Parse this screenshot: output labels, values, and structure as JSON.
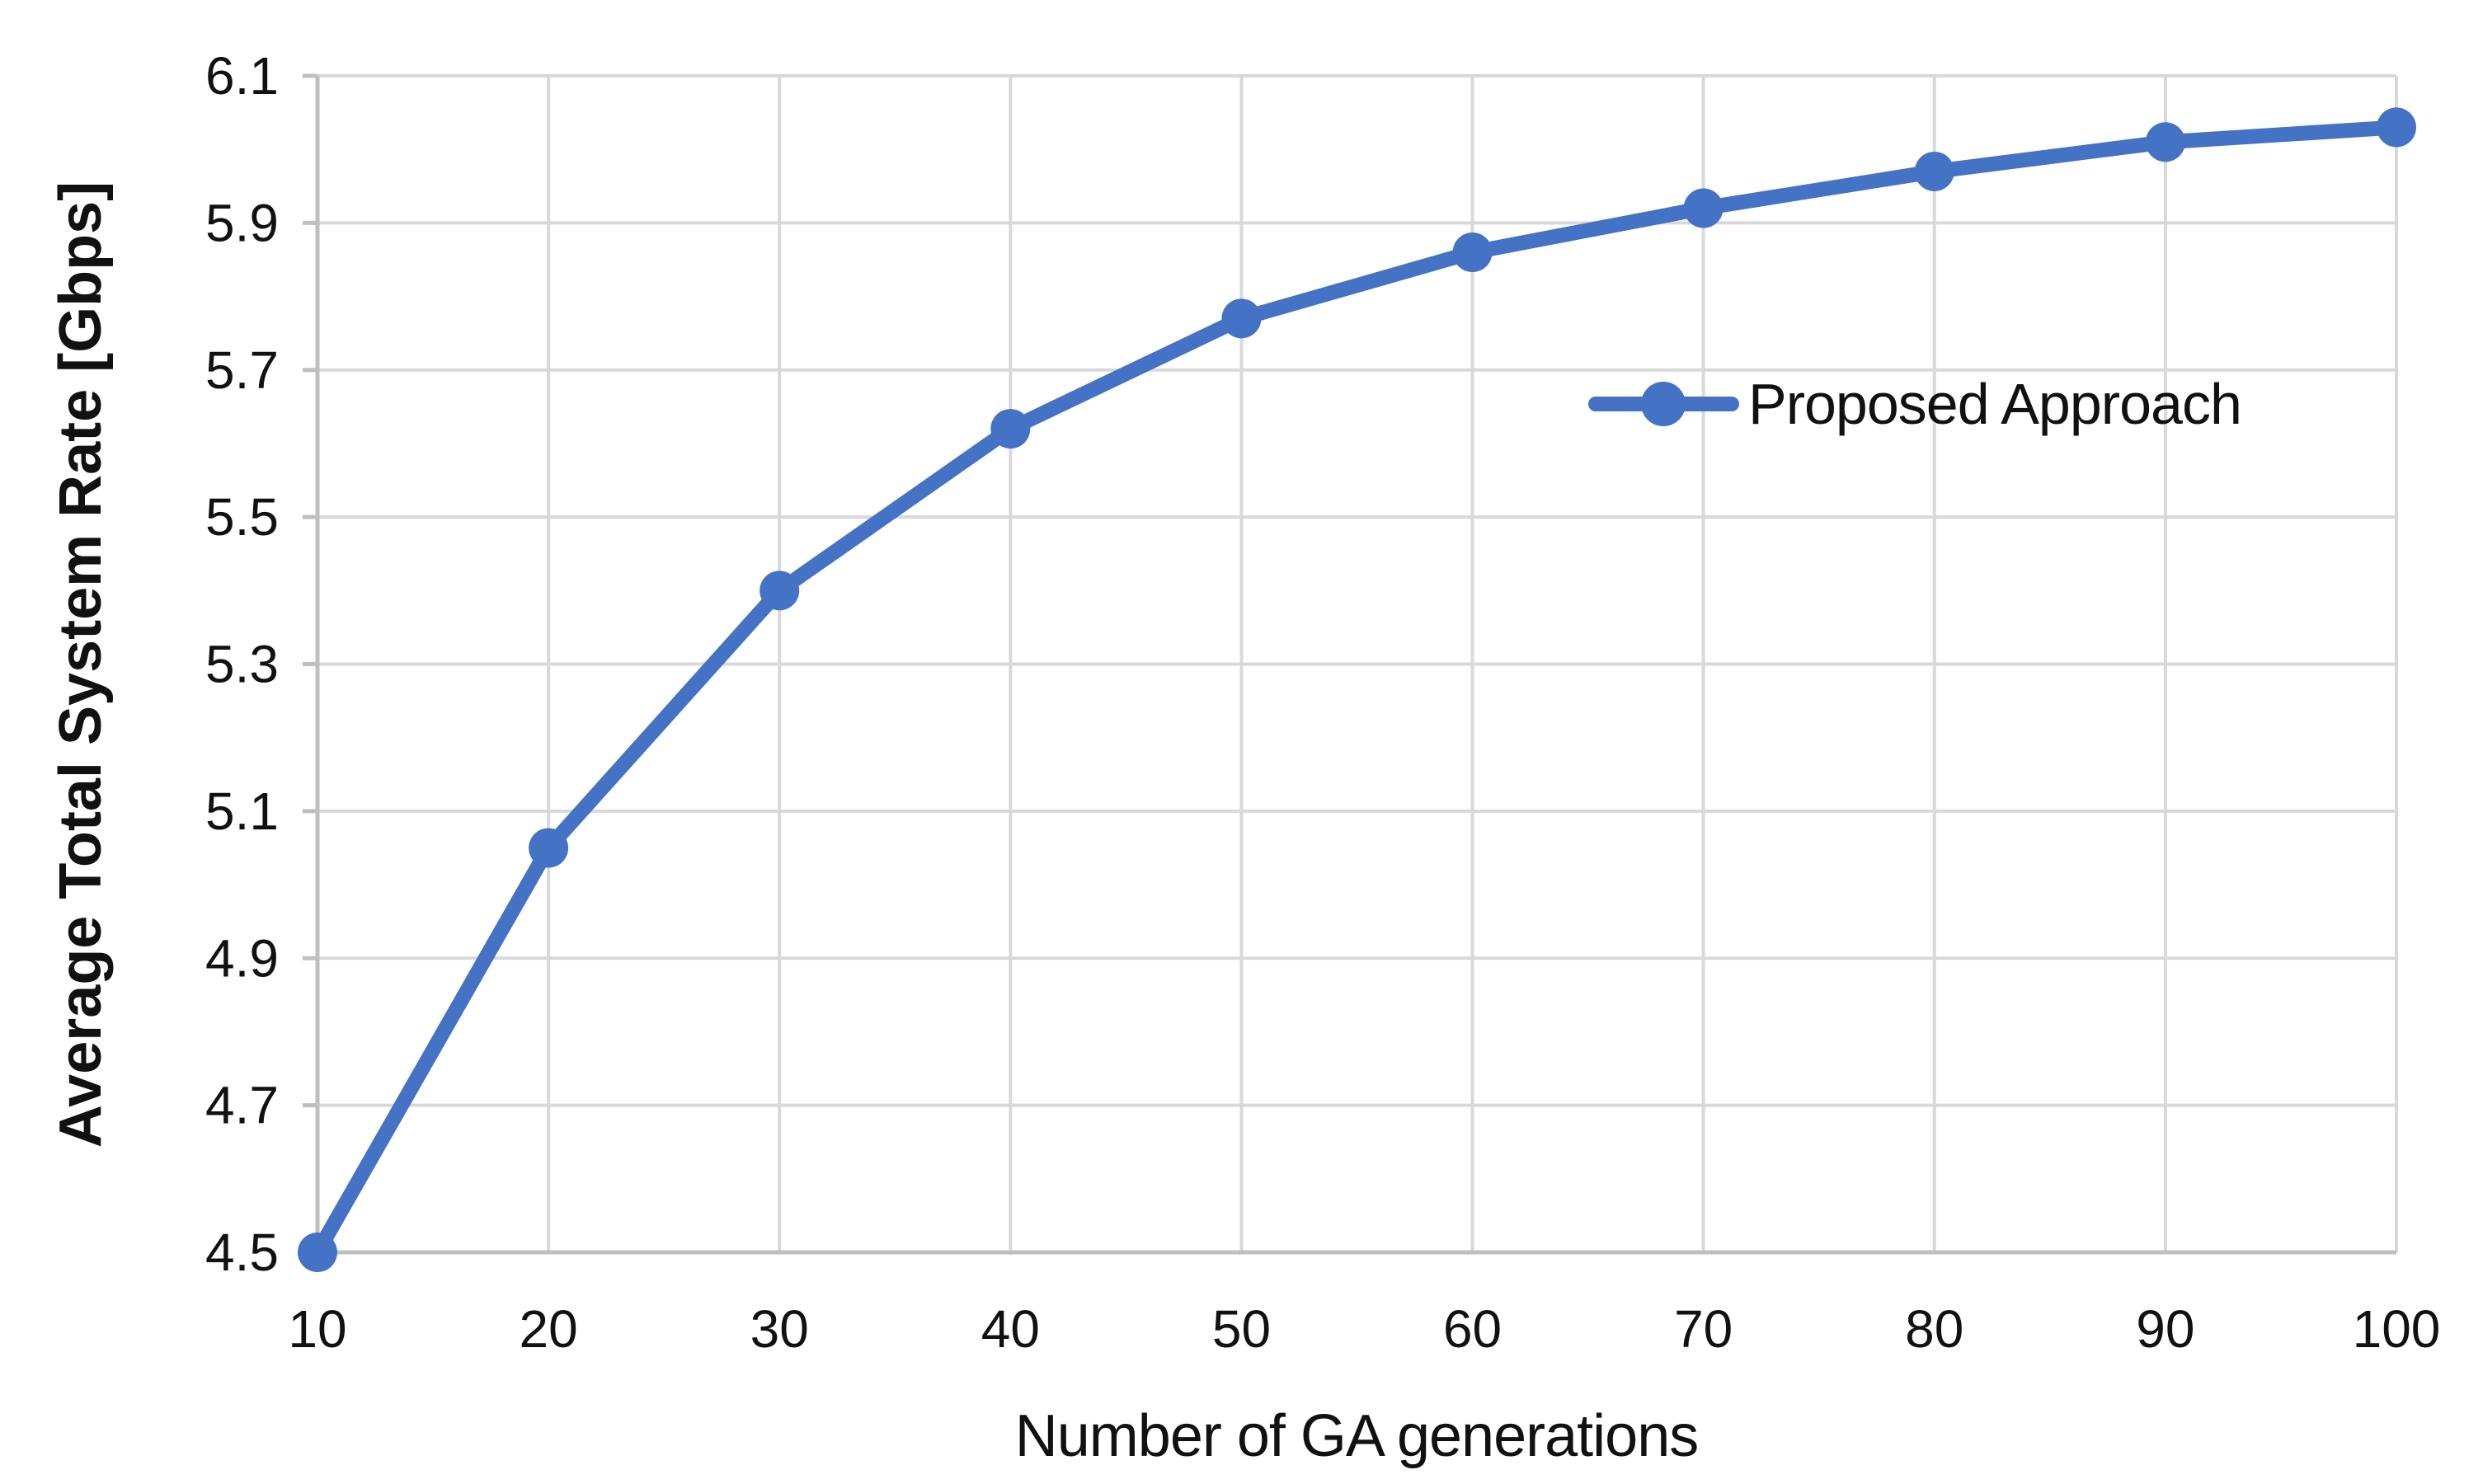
{
  "chart_data": {
    "type": "line",
    "title": "",
    "xlabel": "Number of GA generations",
    "ylabel": "Average Total System Rate [Gbps]",
    "x": [
      10,
      20,
      30,
      40,
      50,
      60,
      70,
      80,
      90,
      100
    ],
    "series": [
      {
        "name": "Proposed Approach",
        "color": "#4472C4",
        "values": [
          4.5,
          5.05,
          5.4,
          5.62,
          5.77,
          5.86,
          5.92,
          5.97,
          6.01,
          6.03
        ]
      }
    ],
    "xlim": [
      10,
      100
    ],
    "ylim": [
      4.5,
      6.1
    ],
    "xtick_labels": [
      "10",
      "20",
      "30",
      "40",
      "50",
      "60",
      "70",
      "80",
      "90",
      "100"
    ],
    "ytick_labels": [
      "4.5",
      "4.7",
      "4.9",
      "5.1",
      "5.3",
      "5.5",
      "5.7",
      "5.9",
      "6.1"
    ],
    "grid": true,
    "legend_position": "inside-upper-right",
    "gridline_color": "#D9D9D9",
    "axis_color": "#BFBFBF",
    "text_color": "#111111",
    "background": "#FFFFFF"
  }
}
